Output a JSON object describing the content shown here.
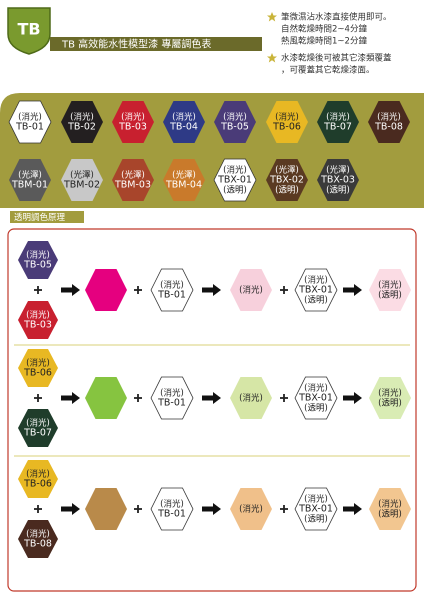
{
  "header": {
    "logo": "TB",
    "title": "TB 高效能水性模型漆 專屬調色表"
  },
  "notes": [
    {
      "lines": [
        "筆微濕沾水漆直接使用即可。",
        "自然乾燥時間2~4分鐘",
        "熱風乾燥時間1~2分鐘"
      ]
    },
    {
      "lines": [
        "水漆乾燥後可被其它漆類覆蓋",
        "，可覆蓋其它乾燥漆面。"
      ]
    }
  ],
  "palette": [
    {
      "finish": "(消光)",
      "code": "TB-01",
      "color": "#ffffff"
    },
    {
      "finish": "(消光)",
      "code": "TB-02",
      "color": "#231f20"
    },
    {
      "finish": "(消光)",
      "code": "TB-03",
      "color": "#c8202f"
    },
    {
      "finish": "(消光)",
      "code": "TB-04",
      "color": "#2e3a86"
    },
    {
      "finish": "(消光)",
      "code": "TB-05",
      "color": "#4a3b78"
    },
    {
      "finish": "(消光)",
      "code": "TB-06",
      "color": "#e8b823"
    },
    {
      "finish": "(消光)",
      "code": "TB-07",
      "color": "#1f3d2b"
    },
    {
      "finish": "(消光)",
      "code": "TB-08",
      "color": "#4a2a1f"
    },
    {
      "finish": "(光澤)",
      "code": "TBM-01",
      "color": "#5a5a5a"
    },
    {
      "finish": "(光澤)",
      "code": "TBM-02",
      "color": "#c8c8c8"
    },
    {
      "finish": "(光澤)",
      "code": "TBM-03",
      "color": "#a8452b"
    },
    {
      "finish": "(光澤)",
      "code": "TBM-04",
      "color": "#c97a2b"
    },
    {
      "finish": "(消光)",
      "code": "TBX-01",
      "note": "(透明)",
      "color": "#ffffff"
    },
    {
      "finish": "(光澤)",
      "code": "TBX-02",
      "note": "(透明)",
      "color": "#5a3a22"
    },
    {
      "finish": "(光澤)",
      "code": "TBX-03",
      "note": "(透明)",
      "color": "#3a3a3a"
    }
  ],
  "section_title": "透明調色原理",
  "recipes": [
    {
      "base_a": {
        "finish": "(消光)",
        "code": "TB-05",
        "color": "#4a3b78"
      },
      "base_b": {
        "finish": "(消光)",
        "code": "TB-03",
        "color": "#c8202f"
      },
      "mix_color": "#e5007f",
      "white": {
        "finish": "(消光)",
        "code": "TB-01",
        "color": "#ffffff"
      },
      "tint": {
        "finish": "(消光)",
        "color": "#f7d0dc"
      },
      "clear": {
        "finish": "(消光)",
        "code": "TBX-01",
        "note": "(透明)",
        "color": "#ffffff"
      },
      "result": {
        "finish": "(消光)",
        "note": "(透明)",
        "color": "#fbdce4"
      }
    },
    {
      "base_a": {
        "finish": "(消光)",
        "code": "TB-06",
        "color": "#e8b823"
      },
      "base_b": {
        "finish": "(消光)",
        "code": "TB-07",
        "color": "#1f3d2b"
      },
      "mix_color": "#86c440",
      "white": {
        "finish": "(消光)",
        "code": "TB-01",
        "color": "#ffffff"
      },
      "tint": {
        "finish": "(消光)",
        "color": "#d6e6a6"
      },
      "clear": {
        "finish": "(消光)",
        "code": "TBX-01",
        "note": "(透明)",
        "color": "#ffffff"
      },
      "result": {
        "finish": "(消光)",
        "note": "(透明)",
        "color": "#d9ecb4"
      }
    },
    {
      "base_a": {
        "finish": "(消光)",
        "code": "TB-06",
        "color": "#e8b823"
      },
      "base_b": {
        "finish": "(消光)",
        "code": "TB-08",
        "color": "#4a2a1f"
      },
      "mix_color": "#b98a4a",
      "white": {
        "finish": "(消光)",
        "code": "TB-01",
        "color": "#ffffff"
      },
      "tint": {
        "finish": "(消光)",
        "color": "#f0c08a"
      },
      "clear": {
        "finish": "(消光)",
        "code": "TBX-01",
        "note": "(透明)",
        "color": "#ffffff"
      },
      "result": {
        "finish": "(消光)",
        "note": "(透明)",
        "color": "#f2c690"
      }
    }
  ]
}
